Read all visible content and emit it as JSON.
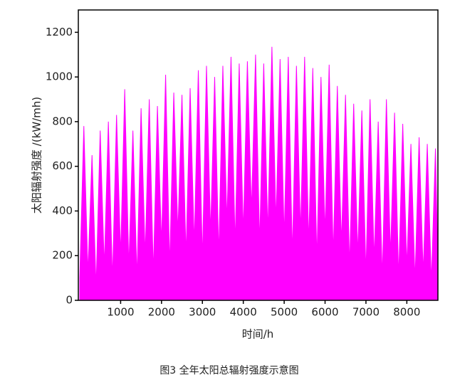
{
  "chart_data": {
    "type": "area",
    "y_label": "太阳辐射强度 /(kW/mh)",
    "x_label": "时间/h",
    "caption": "图3 全年太阳总辐射强度示意图",
    "color": "#ff00ff",
    "x": [
      0,
      100,
      200,
      300,
      400,
      500,
      600,
      700,
      800,
      900,
      1000,
      1100,
      1200,
      1300,
      1400,
      1500,
      1600,
      1700,
      1800,
      1900,
      2000,
      2100,
      2200,
      2300,
      2400,
      2500,
      2600,
      2700,
      2800,
      2900,
      3000,
      3100,
      3200,
      3300,
      3400,
      3500,
      3600,
      3700,
      3800,
      3900,
      4000,
      4100,
      4200,
      4300,
      4400,
      4500,
      4600,
      4700,
      4800,
      4900,
      5000,
      5100,
      5200,
      5300,
      5400,
      5500,
      5600,
      5700,
      5800,
      5900,
      6000,
      6100,
      6200,
      6300,
      6400,
      6500,
      6600,
      6700,
      6800,
      6900,
      7000,
      7100,
      7200,
      7300,
      7400,
      7500,
      7600,
      7700,
      7800,
      7900,
      8000,
      8100,
      8200,
      8300,
      8400,
      8500,
      8600,
      8700,
      8760
    ],
    "values": [
      100,
      780,
      120,
      650,
      60,
      760,
      150,
      800,
      90,
      830,
      200,
      945,
      150,
      760,
      100,
      860,
      200,
      900,
      120,
      870,
      250,
      1010,
      150,
      930,
      300,
      920,
      200,
      950,
      250,
      1030,
      180,
      1050,
      300,
      1000,
      200,
      1050,
      350,
      1090,
      250,
      1060,
      300,
      1070,
      400,
      1100,
      250,
      1060,
      300,
      1135,
      350,
      1080,
      280,
      1090,
      200,
      1050,
      300,
      1090,
      250,
      1040,
      180,
      1000,
      300,
      1055,
      200,
      960,
      250,
      920,
      150,
      880,
      200,
      850,
      120,
      900,
      180,
      800,
      100,
      900,
      200,
      840,
      100,
      790,
      150,
      700,
      90,
      730,
      120,
      700,
      80,
      680,
      150
    ],
    "xlim": [
      0,
      8760
    ],
    "ylim": [
      0,
      1300
    ],
    "xticks": [
      1000,
      2000,
      3000,
      4000,
      5000,
      6000,
      7000,
      8000
    ],
    "yticks": [
      0,
      200,
      400,
      600,
      800,
      1000,
      1200
    ]
  }
}
